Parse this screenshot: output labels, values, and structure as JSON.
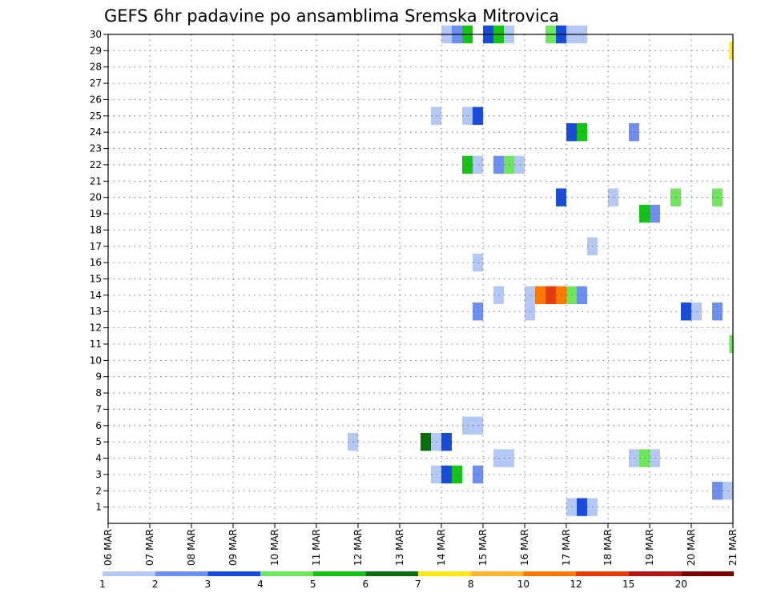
{
  "chart_data": {
    "type": "heatmap",
    "title": "GEFS 6hr padavine po ansamblima Sremska Mitrovica",
    "xlabel": "",
    "ylabel": "",
    "x_ticks": [
      "06 MAR",
      "07 MAR",
      "08 MAR",
      "09 MAR",
      "10 MAR",
      "11 MAR",
      "12 MAR",
      "13 MAR",
      "14 MAR",
      "15 MAR",
      "16 MAR",
      "17 MAR",
      "18 MAR",
      "19 MAR",
      "20 MAR",
      "21 MAR"
    ],
    "xlim_days": [
      0,
      15
    ],
    "y_ticks": [
      1,
      2,
      3,
      4,
      5,
      6,
      7,
      8,
      9,
      10,
      11,
      12,
      13,
      14,
      15,
      16,
      17,
      18,
      19,
      20,
      21,
      22,
      23,
      24,
      25,
      26,
      27,
      28,
      29,
      30
    ],
    "ylim": [
      0,
      30
    ],
    "grid": true,
    "cell_width_days": 0.25,
    "legend": {
      "position": "bottom",
      "labels": [
        "1",
        "2",
        "3",
        "4",
        "5",
        "6",
        "7",
        "8",
        "10",
        "12",
        "15",
        "20"
      ],
      "colors": [
        "#b4c8f5",
        "#6e8ef0",
        "#1a4cdc",
        "#6ee65a",
        "#14c314",
        "#0a6e0a",
        "#ffe614",
        "#ffb432",
        "#ff7800",
        "#e63c0a",
        "#b41414",
        "#780000"
      ]
    },
    "points": [
      {
        "day": 8.0,
        "member": 30,
        "cls": 1
      },
      {
        "day": 8.25,
        "member": 30,
        "cls": 2
      },
      {
        "day": 8.5,
        "member": 30,
        "cls": 5
      },
      {
        "day": 9.0,
        "member": 30,
        "cls": 3
      },
      {
        "day": 9.25,
        "member": 30,
        "cls": 5
      },
      {
        "day": 9.5,
        "member": 30,
        "cls": 1
      },
      {
        "day": 10.5,
        "member": 30,
        "cls": 4
      },
      {
        "day": 10.75,
        "member": 30,
        "cls": 3
      },
      {
        "day": 11.0,
        "member": 30,
        "cls": 1
      },
      {
        "day": 11.25,
        "member": 30,
        "cls": 1
      },
      {
        "day": 14.9,
        "member": 29,
        "cls": 7
      },
      {
        "day": 7.75,
        "member": 25,
        "cls": 1
      },
      {
        "day": 8.5,
        "member": 25,
        "cls": 1
      },
      {
        "day": 8.75,
        "member": 25,
        "cls": 3
      },
      {
        "day": 11.0,
        "member": 24,
        "cls": 3
      },
      {
        "day": 11.25,
        "member": 24,
        "cls": 5
      },
      {
        "day": 12.5,
        "member": 24,
        "cls": 2
      },
      {
        "day": 8.5,
        "member": 22,
        "cls": 5
      },
      {
        "day": 8.75,
        "member": 22,
        "cls": 1
      },
      {
        "day": 9.25,
        "member": 22,
        "cls": 2
      },
      {
        "day": 9.5,
        "member": 22,
        "cls": 4
      },
      {
        "day": 9.75,
        "member": 22,
        "cls": 1
      },
      {
        "day": 10.75,
        "member": 20,
        "cls": 3
      },
      {
        "day": 12.0,
        "member": 20,
        "cls": 1
      },
      {
        "day": 13.5,
        "member": 20,
        "cls": 4
      },
      {
        "day": 14.5,
        "member": 20,
        "cls": 4
      },
      {
        "day": 12.75,
        "member": 19,
        "cls": 5
      },
      {
        "day": 13.0,
        "member": 19,
        "cls": 2
      },
      {
        "day": 11.5,
        "member": 17,
        "cls": 1
      },
      {
        "day": 8.75,
        "member": 16,
        "cls": 1
      },
      {
        "day": 9.25,
        "member": 14,
        "cls": 1
      },
      {
        "day": 10.0,
        "member": 14,
        "cls": 1
      },
      {
        "day": 10.25,
        "member": 14,
        "cls": 9
      },
      {
        "day": 10.5,
        "member": 14,
        "cls": 10
      },
      {
        "day": 10.75,
        "member": 14,
        "cls": 9
      },
      {
        "day": 11.0,
        "member": 14,
        "cls": 4
      },
      {
        "day": 11.25,
        "member": 14,
        "cls": 2
      },
      {
        "day": 8.75,
        "member": 13,
        "cls": 2
      },
      {
        "day": 10.0,
        "member": 13,
        "cls": 1
      },
      {
        "day": 13.75,
        "member": 13,
        "cls": 3
      },
      {
        "day": 14.0,
        "member": 13,
        "cls": 1
      },
      {
        "day": 14.5,
        "member": 13,
        "cls": 2
      },
      {
        "day": 14.9,
        "member": 11,
        "cls": 4
      },
      {
        "day": 5.75,
        "member": 5,
        "cls": 1
      },
      {
        "day": 7.5,
        "member": 5,
        "cls": 6
      },
      {
        "day": 7.75,
        "member": 5,
        "cls": 1
      },
      {
        "day": 8.0,
        "member": 5,
        "cls": 3
      },
      {
        "day": 8.5,
        "member": 6,
        "cls": 1
      },
      {
        "day": 8.75,
        "member": 6,
        "cls": 1
      },
      {
        "day": 9.25,
        "member": 4,
        "cls": 1
      },
      {
        "day": 9.5,
        "member": 4,
        "cls": 1
      },
      {
        "day": 12.5,
        "member": 4,
        "cls": 1
      },
      {
        "day": 12.75,
        "member": 4,
        "cls": 4
      },
      {
        "day": 13.0,
        "member": 4,
        "cls": 1
      },
      {
        "day": 7.75,
        "member": 3,
        "cls": 1
      },
      {
        "day": 8.0,
        "member": 3,
        "cls": 3
      },
      {
        "day": 8.25,
        "member": 3,
        "cls": 5
      },
      {
        "day": 8.75,
        "member": 3,
        "cls": 2
      },
      {
        "day": 14.5,
        "member": 2,
        "cls": 2
      },
      {
        "day": 14.75,
        "member": 2,
        "cls": 1
      },
      {
        "day": 11.0,
        "member": 1,
        "cls": 1
      },
      {
        "day": 11.25,
        "member": 1,
        "cls": 3
      },
      {
        "day": 11.5,
        "member": 1,
        "cls": 1
      }
    ]
  }
}
